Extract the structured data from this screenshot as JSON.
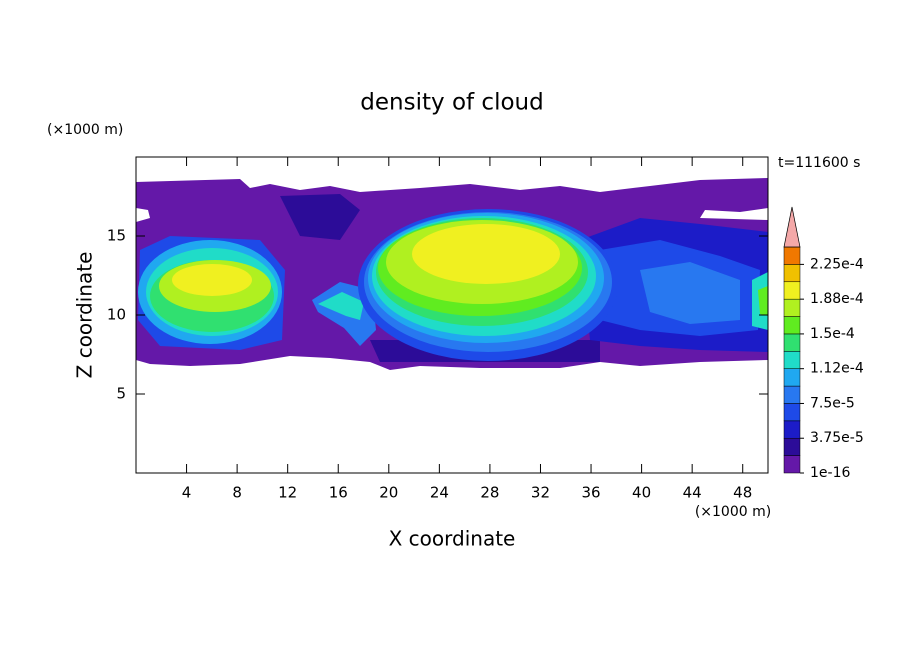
{
  "chart_data": {
    "type": "contour",
    "title": "density of cloud",
    "xlabel": "X coordinate",
    "ylabel": "Z coordinate",
    "x_unit": "(×1000 m)",
    "y_unit": "(×1000 m)",
    "annotation": "t=111600 s",
    "xlim": [
      0,
      50
    ],
    "ylim": [
      0,
      20
    ],
    "xticks": [
      4,
      8,
      12,
      16,
      20,
      24,
      28,
      32,
      36,
      40,
      44,
      48
    ],
    "yticks": [
      5,
      10,
      15
    ],
    "colorbar": {
      "levels": [
        1e-16,
        1.875e-05,
        3.75e-05,
        5.625e-05,
        7.5e-05,
        9.375e-05,
        0.0001125,
        0.00013125,
        0.00015,
        0.00016875,
        0.0001875,
        0.00020625,
        0.000225,
        0.00024375
      ],
      "colors": [
        "#6418a8",
        "#2c0c98",
        "#1c1cc8",
        "#1e4ae8",
        "#2878f0",
        "#20a8f0",
        "#20dcc8",
        "#30e070",
        "#60ec20",
        "#b0f020",
        "#f0f020",
        "#f0c000",
        "#f07800"
      ],
      "over_color": "#f4a8a8",
      "ticks": [
        {
          "value": 1e-16,
          "label": "1e-16"
        },
        {
          "value": 3.75e-05,
          "label": "3.75e-5"
        },
        {
          "value": 7.5e-05,
          "label": "7.5e-5"
        },
        {
          "value": 0.0001125,
          "label": "1.12e-4"
        },
        {
          "value": 0.00015,
          "label": "1.5e-4"
        },
        {
          "value": 0.0001875,
          "label": "1.88e-4"
        },
        {
          "value": 0.000225,
          "label": "2.25e-4"
        }
      ]
    }
  }
}
